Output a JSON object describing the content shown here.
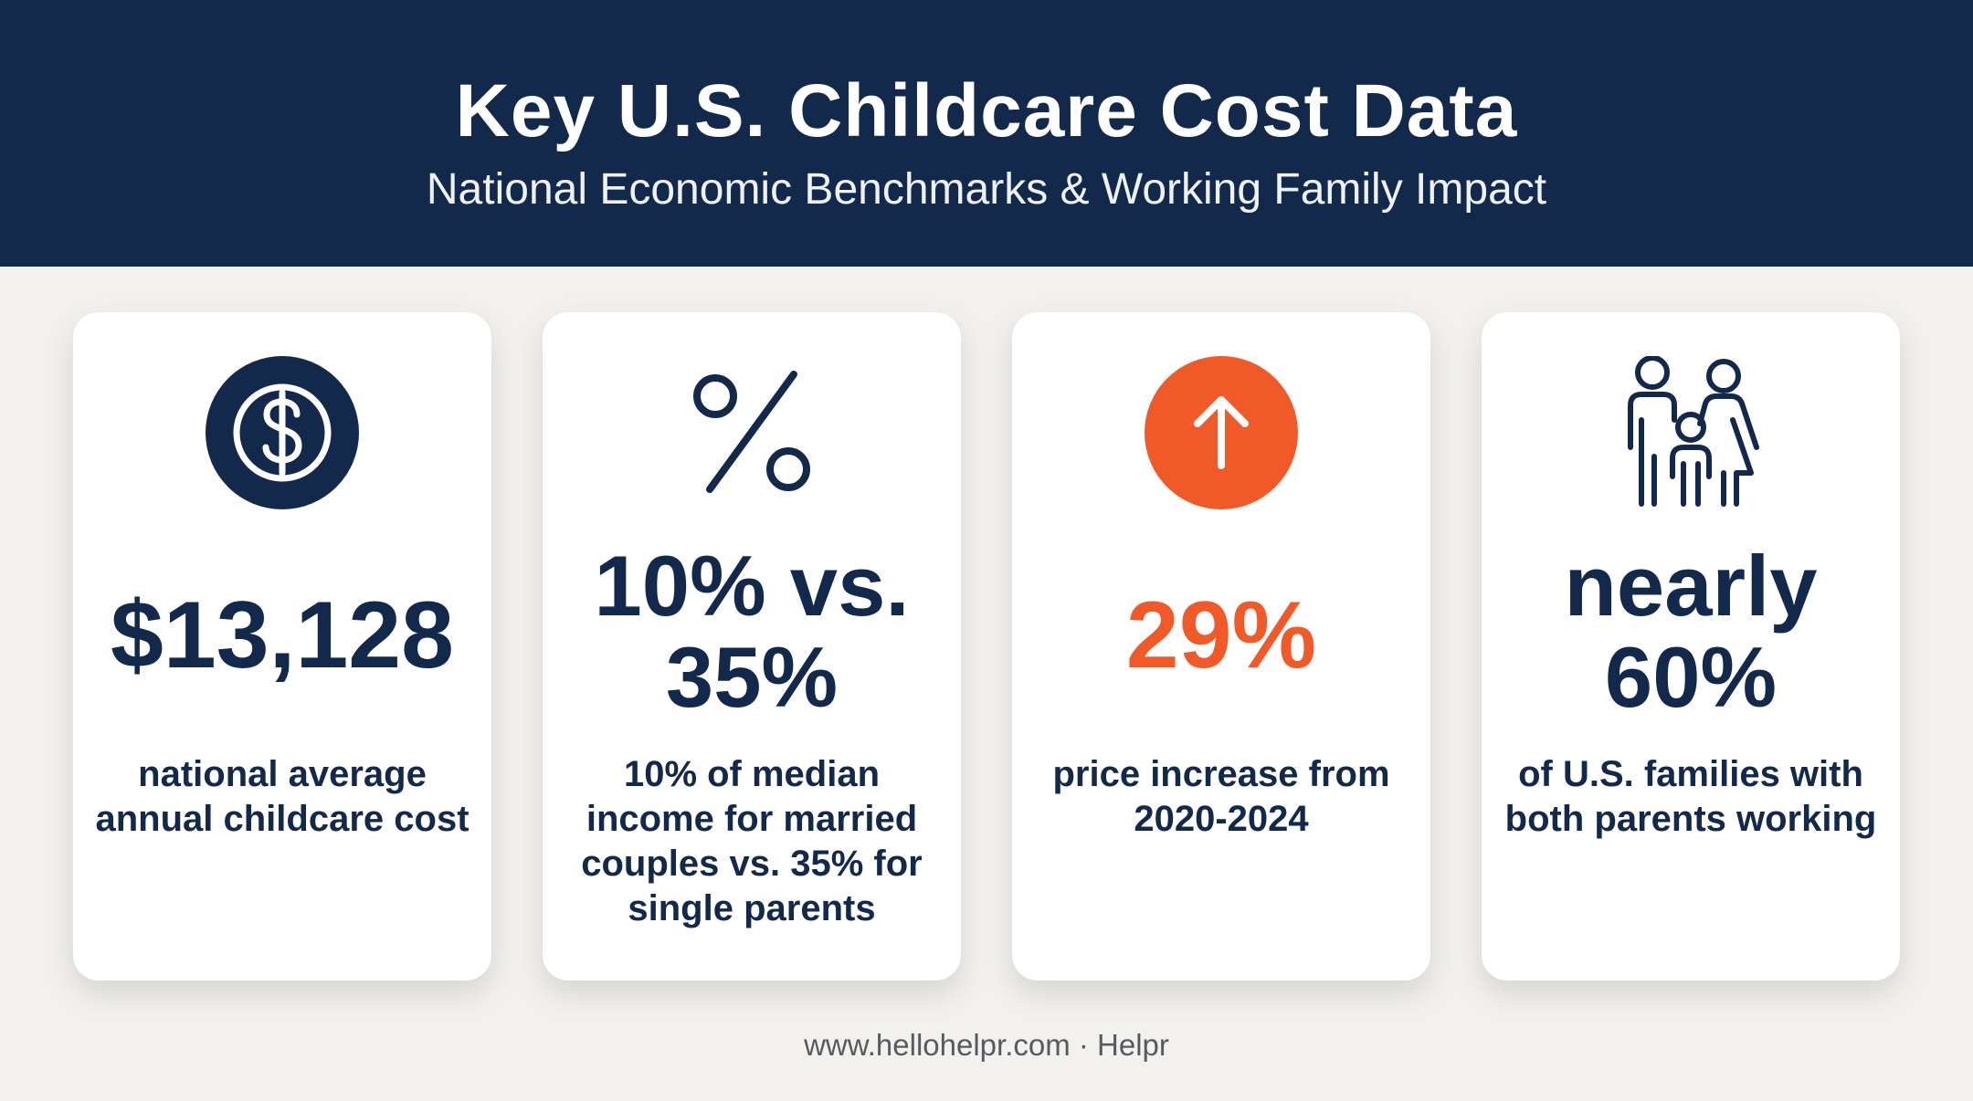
{
  "header": {
    "title": "Key U.S. Childcare Cost Data",
    "subtitle": "National Economic Benchmarks & Working Family Impact"
  },
  "colors": {
    "navy": "#13294b",
    "accent_orange": "#f05a28",
    "background": "#f2f1ee",
    "card": "#ffffff"
  },
  "cards": [
    {
      "icon": "dollar-circle-icon",
      "stat": "$13,128",
      "description": "national average annual childcare cost"
    },
    {
      "icon": "percent-icon",
      "stat_line1": "10% vs.",
      "stat_line2": "35%",
      "description": "10% of median income for married couples vs. 35% for single parents"
    },
    {
      "icon": "arrow-up-circle-icon",
      "stat": "29%",
      "description": "price increase from 2020-2024"
    },
    {
      "icon": "family-icon",
      "stat_line1": "nearly",
      "stat_line2": "60%",
      "description": "of U.S. families with both parents working"
    }
  ],
  "footer": {
    "text": "www.hellohelpr.com · Helpr"
  }
}
